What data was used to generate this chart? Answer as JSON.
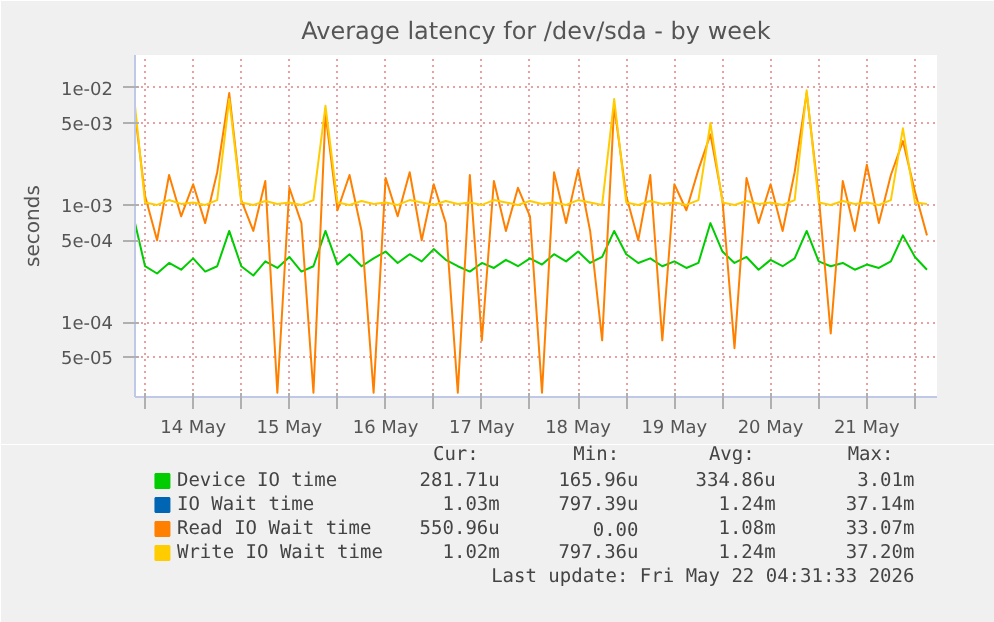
{
  "chart_data": {
    "type": "line",
    "title": "Average latency for /dev/sda - by week",
    "ylabel": "seconds",
    "log": "y",
    "grid": true,
    "legend": "bottom",
    "marker": "none",
    "line_style": "solid",
    "xlim": [
      "2026-05-13T21:30",
      "2026-05-22T05:30"
    ],
    "xticks": [
      {
        "value": "2026-05-14T00:00",
        "label": null
      },
      {
        "value": "2026-05-14T12:00",
        "label": "14 May"
      },
      {
        "value": "2026-05-15T00:00",
        "label": null
      },
      {
        "value": "2026-05-15T12:00",
        "label": "15 May"
      },
      {
        "value": "2026-05-16T00:00",
        "label": null
      },
      {
        "value": "2026-05-16T12:00",
        "label": "16 May"
      },
      {
        "value": "2026-05-17T00:00",
        "label": null
      },
      {
        "value": "2026-05-17T12:00",
        "label": "17 May"
      },
      {
        "value": "2026-05-18T00:00",
        "label": null
      },
      {
        "value": "2026-05-18T12:00",
        "label": "18 May"
      },
      {
        "value": "2026-05-19T00:00",
        "label": null
      },
      {
        "value": "2026-05-19T12:00",
        "label": "19 May"
      },
      {
        "value": "2026-05-20T00:00",
        "label": null
      },
      {
        "value": "2026-05-20T12:00",
        "label": "20 May"
      },
      {
        "value": "2026-05-21T00:00",
        "label": null
      },
      {
        "value": "2026-05-21T12:00",
        "label": "21 May"
      },
      {
        "value": "2026-05-22T00:00",
        "label": null
      }
    ],
    "ylim": [
      2.3e-05,
      0.019
    ],
    "yticks": [
      {
        "value": 5e-05,
        "label": "5e-05"
      },
      {
        "value": 0.0001,
        "label": "1e-04"
      },
      {
        "value": 0.0005,
        "label": "5e-04"
      },
      {
        "value": 0.001,
        "label": "1e-03"
      },
      {
        "value": 0.005,
        "label": "5e-03"
      },
      {
        "value": 0.01,
        "label": "1e-02"
      }
    ],
    "x": [
      "2026-05-13T21:30",
      "2026-05-14T00:00",
      "2026-05-14T03:00",
      "2026-05-14T06:00",
      "2026-05-14T09:00",
      "2026-05-14T12:00",
      "2026-05-14T15:00",
      "2026-05-14T18:00",
      "2026-05-14T21:00",
      "2026-05-15T00:00",
      "2026-05-15T03:00",
      "2026-05-15T06:00",
      "2026-05-15T09:00",
      "2026-05-15T12:00",
      "2026-05-15T15:00",
      "2026-05-15T18:00",
      "2026-05-15T21:00",
      "2026-05-16T00:00",
      "2026-05-16T03:00",
      "2026-05-16T06:00",
      "2026-05-16T09:00",
      "2026-05-16T12:00",
      "2026-05-16T15:00",
      "2026-05-16T18:00",
      "2026-05-16T21:00",
      "2026-05-17T00:00",
      "2026-05-17T03:00",
      "2026-05-17T06:00",
      "2026-05-17T09:00",
      "2026-05-17T12:00",
      "2026-05-17T15:00",
      "2026-05-17T18:00",
      "2026-05-17T21:00",
      "2026-05-18T00:00",
      "2026-05-18T03:00",
      "2026-05-18T06:00",
      "2026-05-18T09:00",
      "2026-05-18T12:00",
      "2026-05-18T15:00",
      "2026-05-18T18:00",
      "2026-05-18T21:00",
      "2026-05-19T00:00",
      "2026-05-19T03:00",
      "2026-05-19T06:00",
      "2026-05-19T09:00",
      "2026-05-19T12:00",
      "2026-05-19T15:00",
      "2026-05-19T18:00",
      "2026-05-19T21:00",
      "2026-05-20T00:00",
      "2026-05-20T03:00",
      "2026-05-20T06:00",
      "2026-05-20T09:00",
      "2026-05-20T12:00",
      "2026-05-20T15:00",
      "2026-05-20T18:00",
      "2026-05-20T21:00",
      "2026-05-21T00:00",
      "2026-05-21T03:00",
      "2026-05-21T06:00",
      "2026-05-21T09:00",
      "2026-05-21T12:00",
      "2026-05-21T15:00",
      "2026-05-21T18:00",
      "2026-05-21T21:00",
      "2026-05-22T00:00",
      "2026-05-22T03:00"
    ],
    "series": [
      {
        "name": "Device IO time",
        "color": "#00cc00",
        "values": [
          0.0007,
          0.0003,
          0.00026,
          0.00032,
          0.00028,
          0.00035,
          0.00027,
          0.0003,
          0.0006,
          0.0003,
          0.00025,
          0.00033,
          0.00029,
          0.00036,
          0.00027,
          0.0003,
          0.0006,
          0.00031,
          0.00038,
          0.0003,
          0.00035,
          0.0004,
          0.00032,
          0.00038,
          0.00033,
          0.00042,
          0.00034,
          0.0003,
          0.00027,
          0.00032,
          0.00029,
          0.00034,
          0.0003,
          0.00035,
          0.00031,
          0.00038,
          0.00033,
          0.0004,
          0.00032,
          0.00036,
          0.0006,
          0.00038,
          0.00032,
          0.00035,
          0.0003,
          0.00033,
          0.00029,
          0.00032,
          0.0007,
          0.0004,
          0.00032,
          0.00036,
          0.00028,
          0.00034,
          0.0003,
          0.00035,
          0.0006,
          0.00033,
          0.0003,
          0.00032,
          0.00028,
          0.00031,
          0.00029,
          0.00033,
          0.00055,
          0.00036,
          0.00028
        ]
      },
      {
        "name": "IO Wait time",
        "color": "#0066b3",
        "values": [
          null,
          null,
          null,
          null,
          null,
          null,
          null,
          null,
          null,
          null,
          null,
          null,
          null,
          null,
          null,
          null,
          null,
          null,
          null,
          null,
          null,
          null,
          null,
          null,
          null,
          null,
          null,
          null,
          null,
          null,
          null,
          null,
          null,
          null,
          null,
          null,
          null,
          null,
          null,
          null,
          null,
          null,
          null,
          null,
          null,
          null,
          null,
          null,
          null,
          null,
          null,
          null,
          null,
          null,
          null,
          null,
          null,
          null,
          null,
          null,
          null,
          null,
          null,
          null,
          null,
          null,
          null
        ]
      },
      {
        "name": "Read IO Wait time",
        "color": "#ff8000",
        "values": [
          0.006,
          0.0012,
          0.0005,
          0.0018,
          0.0008,
          0.0015,
          0.0007,
          0.0019,
          0.009,
          0.0011,
          0.0006,
          0.0016,
          2.5e-05,
          0.0014,
          0.0007,
          2.5e-05,
          0.006,
          0.0009,
          0.0018,
          0.0006,
          2.5e-05,
          0.0017,
          0.0008,
          0.0019,
          0.0005,
          0.0015,
          0.0007,
          2.5e-05,
          0.0018,
          7e-05,
          0.0016,
          0.0006,
          0.0014,
          0.0008,
          2.5e-05,
          0.0019,
          0.0007,
          0.002,
          0.0006,
          7e-05,
          0.007,
          0.0012,
          0.0005,
          0.0018,
          7e-05,
          0.0015,
          0.0009,
          0.002,
          0.004,
          0.0011,
          6e-05,
          0.0017,
          0.0007,
          0.0015,
          0.0006,
          0.0019,
          0.009,
          0.0012,
          8e-05,
          0.0016,
          0.0006,
          0.0022,
          0.0007,
          0.0018,
          0.0035,
          0.0013,
          0.00055
        ]
      },
      {
        "name": "Write IO Wait time",
        "color": "#ffcc00",
        "values": [
          0.007,
          0.00105,
          0.001,
          0.0011,
          0.00102,
          0.00105,
          0.001,
          0.0011,
          0.008,
          0.00105,
          0.001,
          0.00108,
          0.00102,
          0.00105,
          0.001,
          0.0011,
          0.007,
          0.00105,
          0.001,
          0.00108,
          0.00102,
          0.00105,
          0.001,
          0.0011,
          0.00105,
          0.001,
          0.00108,
          0.00102,
          0.00105,
          0.001,
          0.0011,
          0.00105,
          0.001,
          0.00108,
          0.00102,
          0.00105,
          0.001,
          0.0011,
          0.00105,
          0.001,
          0.008,
          0.00105,
          0.001,
          0.00108,
          0.00102,
          0.00105,
          0.001,
          0.0011,
          0.005,
          0.00105,
          0.001,
          0.00108,
          0.00102,
          0.00105,
          0.001,
          0.0011,
          0.0095,
          0.00105,
          0.001,
          0.00108,
          0.00102,
          0.00105,
          0.001,
          0.0011,
          0.0045,
          0.00105,
          0.00102
        ]
      }
    ],
    "annotations": [
      "Cur:",
      "Min:",
      "Avg:",
      "Max:",
      "281.71u",
      "165.96u",
      "334.86u",
      "3.01m",
      "1.03m",
      "797.39u",
      "1.24m",
      "37.14m",
      "550.96u",
      "0.00",
      "1.08m",
      "33.07m",
      "1.02m",
      "797.36u",
      "1.24m",
      "37.20m",
      "Last update: Fri May 22 04:31:33 2026"
    ]
  }
}
